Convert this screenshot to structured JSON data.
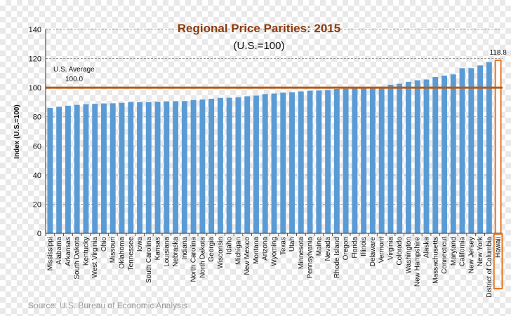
{
  "chart_data": {
    "type": "bar",
    "title": "Regional Price Parities: 2015",
    "subtitle": "(U.S.=100)",
    "ylabel": "Index (U.S.=100)",
    "xlabel": "",
    "ylim": [
      0,
      140
    ],
    "yticks": [
      0,
      20,
      40,
      60,
      80,
      100,
      120,
      140
    ],
    "grid": true,
    "source": "Source: U.S. Bureau of Economic Analysis",
    "reference_line": {
      "value": 100,
      "label_line1": "U.S. Average",
      "label_line2": "100.0",
      "color": "#b85a13"
    },
    "highlight": {
      "category": "Hawaii",
      "value_label": "118.8",
      "color": "#e87722"
    },
    "bar_color": "#5b9bd5",
    "categories": [
      "Mississippi",
      "Alabama",
      "Arkansas",
      "South Dakota",
      "Kentucky",
      "West Virginia",
      "Ohio",
      "Missouri",
      "Oklahoma",
      "Tennessee",
      "Iowa",
      "South Carolina",
      "Kansas",
      "Louisiana",
      "Nebraska",
      "Indiana",
      "North Carolina",
      "North Dakota",
      "Georgia",
      "Wisconsin",
      "Idaho",
      "Michigan",
      "New Mexico",
      "Montana",
      "Arizona",
      "Wyoming",
      "Texas",
      "Utah",
      "Minnesota",
      "Pennsylvania",
      "Maine",
      "Nevada",
      "Rhode Island",
      "Oregon",
      "Florida",
      "Illinois",
      "Delaware",
      "Vermont",
      "Virginia",
      "Colorado",
      "Washington",
      "New Hampshire",
      "Alaska",
      "Massachusetts",
      "Connecticut",
      "Maryland",
      "California",
      "New Jersey",
      "New York",
      "District of Columbia",
      "Hawaii"
    ],
    "values": [
      86.1,
      86.9,
      87.6,
      88.2,
      88.6,
      88.9,
      89.2,
      89.3,
      89.6,
      90.1,
      90.1,
      90.2,
      90.4,
      90.6,
      90.7,
      90.8,
      91.5,
      91.9,
      92.4,
      93.0,
      93.1,
      93.4,
      94.1,
      94.6,
      95.6,
      96.0,
      96.6,
      96.9,
      97.4,
      97.9,
      98.1,
      98.4,
      99.1,
      99.3,
      99.6,
      100.0,
      100.1,
      100.7,
      102.1,
      102.7,
      104.0,
      105.1,
      105.6,
      107.3,
      108.3,
      109.1,
      113.4,
      113.4,
      115.3,
      117.6,
      118.8
    ]
  }
}
